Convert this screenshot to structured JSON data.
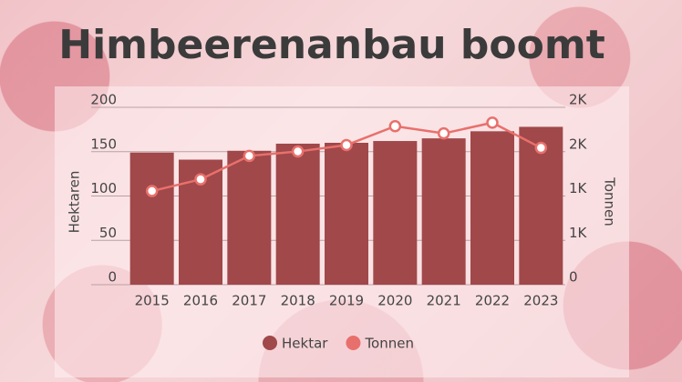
{
  "chart_data": {
    "type": "bar_line",
    "title": "Himbeerenanbau boomt",
    "categories": [
      "2015",
      "2016",
      "2017",
      "2018",
      "2019",
      "2020",
      "2021",
      "2022",
      "2023"
    ],
    "series": [
      {
        "name": "Hektar",
        "color": "#a0484a",
        "type": "bar",
        "values": [
          149,
          141,
          151,
          159,
          160,
          162,
          165,
          173,
          178
        ]
      },
      {
        "name": "Tonnen",
        "color": "#e8706c",
        "type": "line",
        "axis": "y2",
        "values": [
          1056,
          1188,
          1452,
          1502,
          1574,
          1787,
          1706,
          1827,
          1543
        ]
      }
    ],
    "y_label": "Hektaren",
    "y2_label": "Tonnen",
    "ylim": [
      0,
      200
    ],
    "yticks": [
      0,
      50,
      100,
      150,
      200
    ],
    "y2lim": [
      0,
      2000
    ],
    "y2ticks": [
      0,
      {
        "value": 500,
        "label": "1K"
      },
      {
        "value": 1000,
        "label": "1K"
      },
      {
        "value": 1500,
        "label": "2K"
      },
      {
        "value": 2000,
        "label": "2K"
      }
    ],
    "grid": true,
    "legend": "bottom"
  }
}
